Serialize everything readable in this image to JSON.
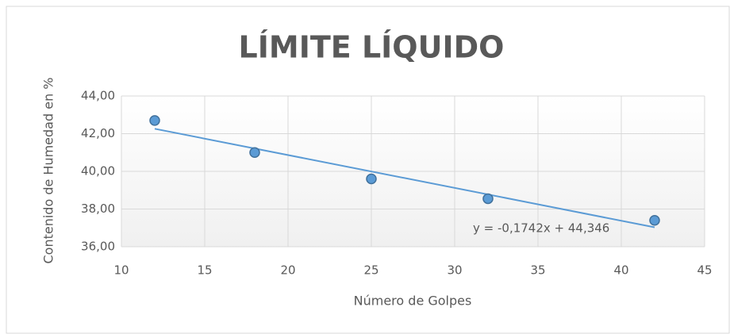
{
  "chart_data": {
    "type": "scatter",
    "title": "LÍMITE LÍQUIDO",
    "x_label": "Número de Golpes",
    "y_label": "Contenido de Humedad en %",
    "series": [
      {
        "name": "Contenido de Humedad",
        "color": "#5b9bd5",
        "x": [
          12,
          18,
          25,
          32,
          42
        ],
        "values": [
          42.7,
          41.0,
          39.6,
          38.55,
          37.4
        ]
      }
    ],
    "trendline": {
      "color": "#5b9bd5",
      "x": [
        12,
        42
      ],
      "values": [
        42.26,
        37.03
      ],
      "label": "y = -0,1742x + 44,346"
    },
    "xlim": [
      10,
      45
    ],
    "xticks": [
      10,
      15,
      20,
      25,
      30,
      35,
      40,
      45
    ],
    "ylim": [
      36,
      44
    ],
    "yticks": [
      {
        "value": 36,
        "label": "36,00"
      },
      {
        "value": 38,
        "label": "38,00"
      },
      {
        "value": 40,
        "label": "40,00"
      },
      {
        "value": 42,
        "label": "42,00"
      },
      {
        "value": 44,
        "label": "44,00"
      }
    ],
    "grid": true
  }
}
